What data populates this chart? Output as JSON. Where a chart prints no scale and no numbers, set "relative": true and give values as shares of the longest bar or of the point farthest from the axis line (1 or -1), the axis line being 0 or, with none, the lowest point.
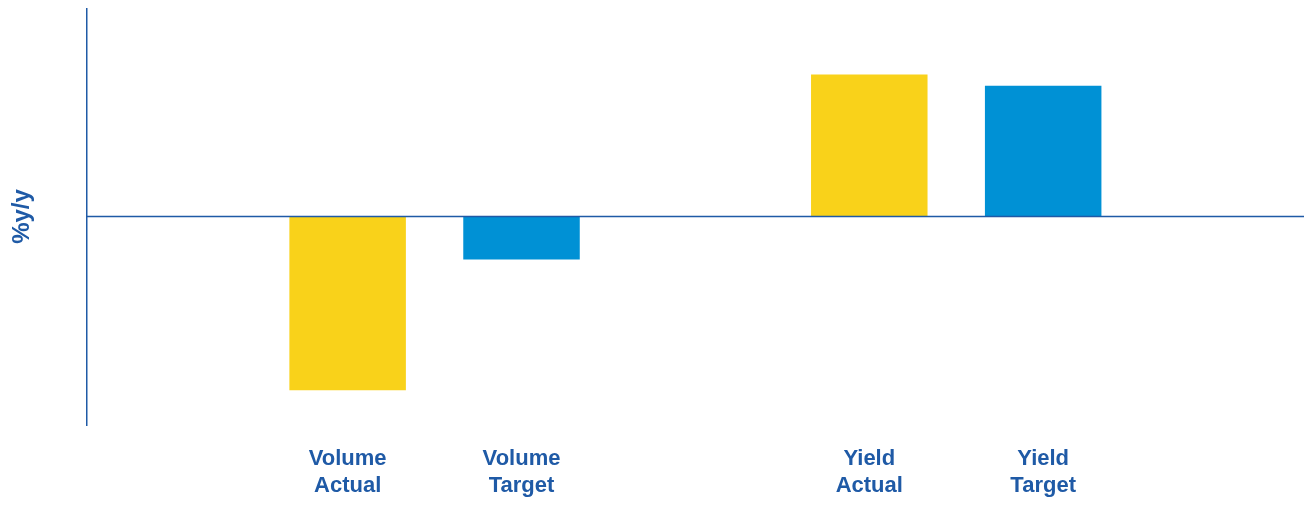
{
  "chart_data": {
    "type": "bar",
    "relative": true,
    "ylabel": "%y/y",
    "categories": [
      null,
      "Volume Actual",
      "Volume Target",
      null,
      "Yield Actual",
      "Yield Target",
      null
    ],
    "values": [
      null,
      -1,
      -0.247,
      null,
      0.817,
      0.753,
      null
    ],
    "colors": [
      "#f9d21a",
      "#f9d21a",
      "#0091d5",
      "#0091d5",
      "#f9d21a",
      "#0091d5",
      "#0091d5"
    ],
    "ref_lines": [
      {
        "axis": "y",
        "value": 0,
        "color": "#1f5aa6"
      }
    ],
    "legend": false,
    "grid": false
  }
}
